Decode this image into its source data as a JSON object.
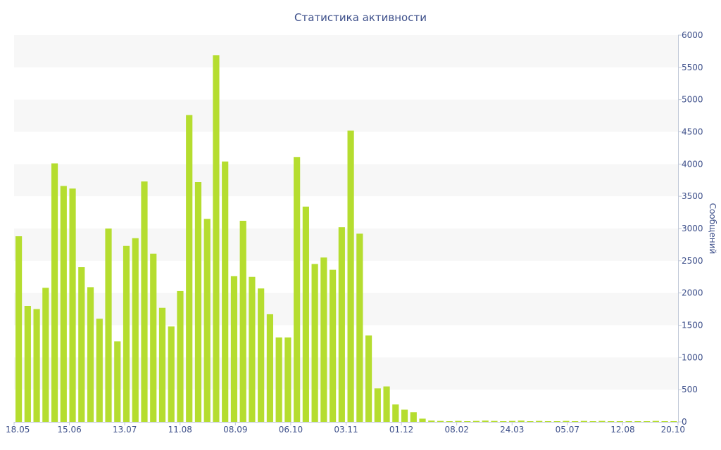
{
  "chart_data": {
    "type": "bar",
    "title": "Статистика активности",
    "ylabel": "Сообщений",
    "ylim": [
      0,
      6000
    ],
    "y_ticks": [
      0,
      500,
      1000,
      1500,
      2000,
      2500,
      3000,
      3500,
      4000,
      4500,
      5000,
      5500,
      6000
    ],
    "x_tick_labels": [
      "18.05",
      "15.06",
      "13.07",
      "11.08",
      "08.09",
      "06.10",
      "03.11",
      "01.12",
      "08.02",
      "24.03",
      "05.07",
      "12.08",
      "20.10"
    ],
    "values": [
      2880,
      1800,
      1750,
      2080,
      4010,
      3660,
      3620,
      2400,
      2090,
      1600,
      3000,
      1250,
      2730,
      2850,
      3730,
      2610,
      1770,
      1480,
      2030,
      4760,
      3720,
      3150,
      5690,
      4040,
      2260,
      3120,
      2250,
      2070,
      1670,
      1310,
      1310,
      4110,
      3340,
      2450,
      2550,
      2360,
      3020,
      4520,
      2920,
      1340,
      520,
      550,
      270,
      190,
      150,
      50,
      20,
      15,
      10,
      15,
      10,
      15,
      20,
      15,
      10,
      15,
      20,
      10,
      15,
      10,
      10,
      15,
      10,
      15,
      10,
      15,
      10,
      10,
      10,
      10,
      10,
      15,
      10,
      10
    ],
    "color": "#b5dd2f",
    "band_color": "#f7f7f7",
    "text_color": "#3d4f8a",
    "grid": "alternating bands",
    "y_axis_side": "right",
    "legend": "none"
  }
}
